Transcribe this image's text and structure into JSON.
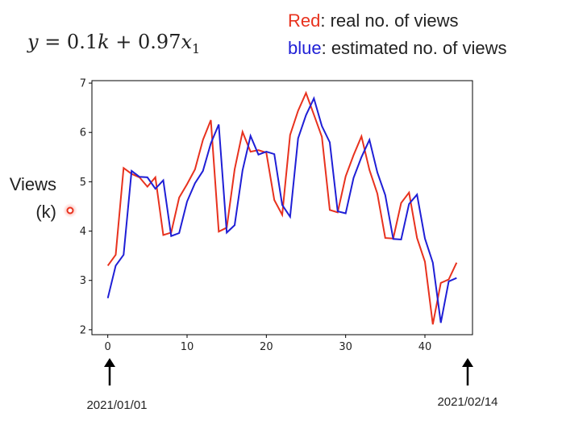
{
  "equation": {
    "y": "y",
    "eq": " = 0.1",
    "k": "k",
    "plus": " + 0.97",
    "x": "x",
    "sub": "1"
  },
  "legend": {
    "red_word": "Red",
    "red_rest": ": real no. of views",
    "blue_word": "blue",
    "blue_rest": ":  estimated no. of views"
  },
  "ylabel_line1": "Views",
  "ylabel_line2": "(k)",
  "start_date": "2021/01/01",
  "end_date": "2021/02/14",
  "colors": {
    "real": "#e8321e",
    "estimated": "#1f1fd6",
    "text": "#222222"
  },
  "chart_data": {
    "type": "line",
    "x": [
      0,
      1,
      2,
      3,
      4,
      5,
      6,
      7,
      8,
      9,
      10,
      11,
      12,
      13,
      14,
      15,
      16,
      17,
      18,
      19,
      20,
      21,
      22,
      23,
      24,
      25,
      26,
      27,
      28,
      29,
      30,
      31,
      32,
      33,
      34,
      35,
      36,
      37,
      38,
      39,
      40,
      41,
      42,
      43,
      44
    ],
    "xlim": [
      -2,
      46
    ],
    "ylim": [
      1.9,
      7.05
    ],
    "xticks": [
      0,
      10,
      20,
      30,
      40
    ],
    "yticks": [
      2,
      3,
      4,
      5,
      6,
      7
    ],
    "grid": false,
    "series": [
      {
        "name": "Red",
        "values": [
          3.3,
          3.52,
          5.28,
          5.16,
          5.09,
          4.9,
          5.09,
          3.92,
          3.97,
          4.68,
          4.95,
          5.25,
          5.85,
          6.25,
          3.99,
          4.07,
          5.25,
          6.01,
          5.61,
          5.64,
          5.59,
          4.63,
          4.33,
          5.95,
          6.44,
          6.8,
          6.36,
          5.91,
          4.43,
          4.38,
          5.11,
          5.54,
          5.92,
          5.24,
          4.76,
          3.86,
          3.85,
          4.57,
          4.78,
          3.86,
          3.38,
          2.11,
          2.95,
          3.02,
          3.36
        ]
      },
      {
        "name": "blue",
        "values": [
          2.64,
          3.3,
          3.52,
          5.22,
          5.1,
          5.09,
          4.86,
          5.03,
          3.9,
          3.96,
          4.6,
          4.97,
          5.22,
          5.78,
          6.16,
          3.97,
          4.12,
          5.23,
          5.93,
          5.55,
          5.61,
          5.56,
          4.53,
          4.29,
          5.88,
          6.35,
          6.69,
          6.13,
          5.8,
          4.4,
          4.36,
          5.08,
          5.5,
          5.85,
          5.19,
          4.73,
          3.84,
          3.83,
          4.55,
          4.74,
          3.85,
          3.36,
          2.14,
          2.98,
          3.05
        ]
      }
    ]
  }
}
